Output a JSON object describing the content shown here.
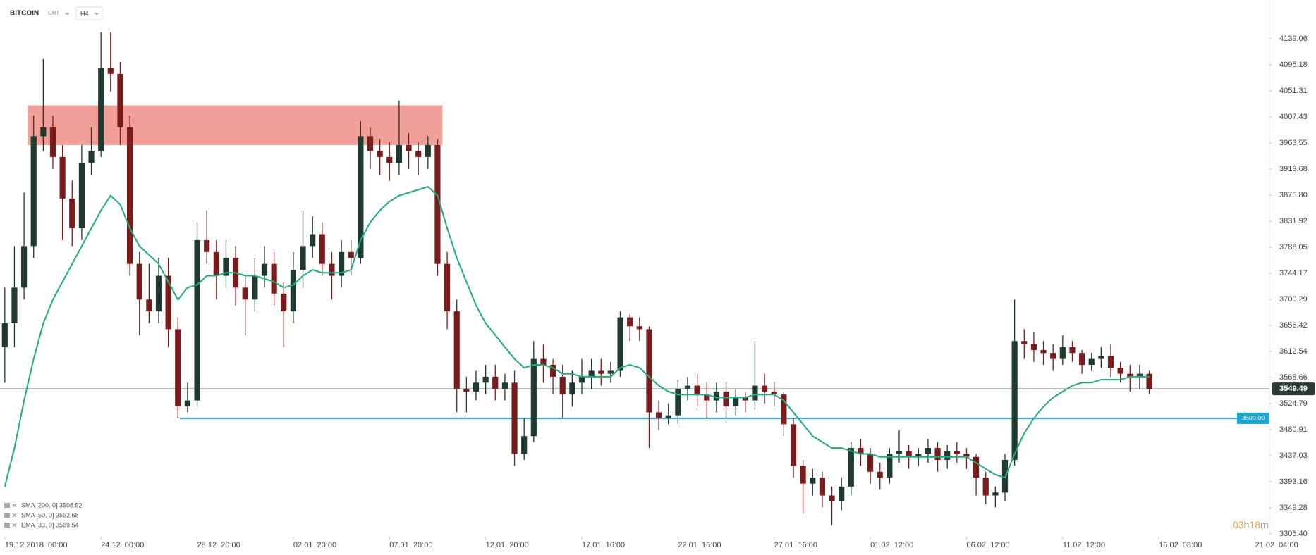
{
  "header": {
    "symbol": "BITCOIN",
    "subtitle": "CRT",
    "timeframe": "H4"
  },
  "chart_data": {
    "type": "candlestick",
    "open": [
      3620,
      3660,
      3720,
      3790,
      3975,
      3990,
      3940,
      3870,
      3820,
      3930,
      3950,
      4090,
      4080,
      3990,
      3760,
      3700,
      3680,
      3740,
      3650,
      3520,
      3530,
      3800,
      3780,
      3740,
      3770,
      3720,
      3700,
      3740,
      3760,
      3710,
      3680,
      3750,
      3790,
      3810,
      3760,
      3740,
      3780,
      3770,
      3975,
      3950,
      3940,
      3930,
      3960,
      3950,
      3940,
      3960,
      3760,
      3680,
      3550,
      3545,
      3560,
      3570,
      3550,
      3560,
      3440,
      3470,
      3600,
      3590,
      3570,
      3540,
      3560,
      3570,
      3580,
      3575,
      3580,
      3670,
      3655,
      3650,
      3510,
      3500,
      3505,
      3550,
      3555,
      3540,
      3530,
      3545,
      3520,
      3535,
      3530,
      3555,
      3545,
      3540,
      3490,
      3420,
      3390,
      3400,
      3370,
      3360,
      3385,
      3450,
      3440,
      3410,
      3400,
      3440,
      3445,
      3435,
      3440,
      3450,
      3430,
      3445,
      3440,
      3435,
      3400,
      3370,
      3375,
      3430,
      3630,
      3625,
      3615,
      3610,
      3600,
      3620,
      3610,
      3590,
      3600,
      3605,
      3585,
      3575,
      3570,
      3575
    ],
    "high": [
      3720,
      3790,
      3880,
      4010,
      4105,
      4010,
      3960,
      3900,
      3960,
      3990,
      4150,
      4150,
      4100,
      4010,
      3780,
      3760,
      3770,
      3770,
      3670,
      3560,
      3830,
      3850,
      3800,
      3800,
      3790,
      3740,
      3770,
      3790,
      3780,
      3730,
      3780,
      3850,
      3840,
      3830,
      3780,
      3800,
      3800,
      4000,
      3990,
      3970,
      3965,
      4035,
      3980,
      3965,
      3975,
      3970,
      3780,
      3700,
      3570,
      3580,
      3590,
      3590,
      3575,
      3580,
      3500,
      3630,
      3625,
      3600,
      3590,
      3580,
      3600,
      3600,
      3600,
      3595,
      3680,
      3675,
      3670,
      3655,
      3530,
      3525,
      3565,
      3570,
      3575,
      3560,
      3560,
      3560,
      3550,
      3545,
      3630,
      3575,
      3560,
      3545,
      3500,
      3430,
      3415,
      3410,
      3385,
      3400,
      3460,
      3465,
      3450,
      3425,
      3450,
      3480,
      3455,
      3450,
      3465,
      3460,
      3455,
      3460,
      3450,
      3440,
      3410,
      3385,
      3440,
      3700,
      3650,
      3645,
      3630,
      3625,
      3640,
      3630,
      3615,
      3610,
      3620,
      3625,
      3595,
      3590,
      3590,
      3580
    ],
    "low": [
      3560,
      3620,
      3700,
      3770,
      3950,
      3920,
      3800,
      3790,
      3800,
      3910,
      3940,
      4050,
      3960,
      3740,
      3640,
      3660,
      3660,
      3620,
      3500,
      3510,
      3520,
      3760,
      3700,
      3720,
      3690,
      3640,
      3680,
      3720,
      3690,
      3620,
      3660,
      3720,
      3770,
      3740,
      3700,
      3720,
      3740,
      3760,
      3920,
      3910,
      3900,
      3910,
      3920,
      3910,
      3920,
      3740,
      3650,
      3510,
      3510,
      3530,
      3540,
      3530,
      3530,
      3420,
      3430,
      3460,
      3560,
      3540,
      3500,
      3520,
      3540,
      3550,
      3555,
      3560,
      3570,
      3630,
      3630,
      3450,
      3480,
      3490,
      3490,
      3530,
      3520,
      3500,
      3510,
      3500,
      3505,
      3510,
      3515,
      3525,
      3520,
      3470,
      3400,
      3340,
      3370,
      3350,
      3320,
      3345,
      3370,
      3420,
      3390,
      3380,
      3390,
      3425,
      3415,
      3420,
      3425,
      3410,
      3415,
      3425,
      3415,
      3370,
      3355,
      3350,
      3360,
      3420,
      3600,
      3595,
      3590,
      3580,
      3590,
      3595,
      3575,
      3580,
      3585,
      3570,
      3560,
      3545,
      3550,
      3540
    ],
    "close": [
      3660,
      3720,
      3790,
      3975,
      3990,
      3940,
      3870,
      3820,
      3930,
      3950,
      4090,
      4080,
      3990,
      3760,
      3700,
      3680,
      3740,
      3650,
      3520,
      3530,
      3800,
      3780,
      3740,
      3770,
      3720,
      3700,
      3740,
      3760,
      3710,
      3680,
      3750,
      3790,
      3810,
      3760,
      3740,
      3780,
      3770,
      3975,
      3950,
      3940,
      3930,
      3960,
      3950,
      3940,
      3960,
      3760,
      3680,
      3550,
      3545,
      3560,
      3570,
      3550,
      3560,
      3440,
      3470,
      3600,
      3590,
      3570,
      3540,
      3560,
      3570,
      3580,
      3575,
      3580,
      3670,
      3655,
      3650,
      3510,
      3500,
      3505,
      3550,
      3555,
      3540,
      3530,
      3545,
      3520,
      3535,
      3530,
      3555,
      3545,
      3540,
      3490,
      3420,
      3390,
      3400,
      3370,
      3360,
      3385,
      3450,
      3440,
      3410,
      3400,
      3440,
      3445,
      3435,
      3440,
      3450,
      3430,
      3445,
      3440,
      3435,
      3400,
      3370,
      3375,
      3430,
      3630,
      3625,
      3615,
      3610,
      3600,
      3620,
      3610,
      3590,
      3600,
      3605,
      3585,
      3575,
      3570,
      3575,
      3549.49
    ],
    "ema": [
      3385,
      3450,
      3530,
      3600,
      3660,
      3700,
      3730,
      3760,
      3790,
      3820,
      3850,
      3875,
      3860,
      3820,
      3790,
      3775,
      3760,
      3730,
      3700,
      3720,
      3725,
      3740,
      3740,
      3745,
      3745,
      3740,
      3740,
      3735,
      3730,
      3720,
      3725,
      3740,
      3750,
      3745,
      3745,
      3745,
      3750,
      3800,
      3830,
      3850,
      3865,
      3875,
      3880,
      3885,
      3890,
      3875,
      3820,
      3770,
      3730,
      3690,
      3660,
      3640,
      3620,
      3600,
      3585,
      3590,
      3590,
      3585,
      3575,
      3575,
      3570,
      3570,
      3570,
      3570,
      3585,
      3590,
      3585,
      3570,
      3555,
      3545,
      3540,
      3540,
      3540,
      3540,
      3535,
      3535,
      3535,
      3535,
      3540,
      3540,
      3540,
      3530,
      3510,
      3490,
      3470,
      3460,
      3450,
      3450,
      3445,
      3440,
      3440,
      3435,
      3435,
      3435,
      3435,
      3435,
      3435,
      3435,
      3435,
      3435,
      3435,
      3425,
      3415,
      3405,
      3400,
      3440,
      3475,
      3500,
      3520,
      3535,
      3545,
      3555,
      3560,
      3560,
      3565,
      3565,
      3565,
      3570,
      3570,
      3570
    ],
    "up_color": "#1f3a2e",
    "down_color": "#7b1c1c",
    "ema_color": "#17b07f",
    "xlim": [
      -0.5,
      131.5
    ],
    "xticks": [
      {
        "value": 0,
        "label": "19.12.2018  00:00"
      },
      {
        "value": 10,
        "label": "24.12  00:00"
      },
      {
        "value": 20,
        "label": "28.12  20:00"
      },
      {
        "value": 30,
        "label": "02.01  20:00"
      },
      {
        "value": 40,
        "label": "07.01  20:00"
      },
      {
        "value": 50,
        "label": "12.01  20:00"
      },
      {
        "value": 60,
        "label": "17.01  16:00"
      },
      {
        "value": 70,
        "label": "22.01  16:00"
      },
      {
        "value": 80,
        "label": "27.01  16:00"
      },
      {
        "value": 90,
        "label": "01.02  12:00"
      },
      {
        "value": 100,
        "label": "06.02  12:00"
      },
      {
        "value": 110,
        "label": "11.02  12:00"
      },
      {
        "value": 120,
        "label": "16.02  08:00"
      },
      {
        "value": 130,
        "label": "21.02  04:00"
      }
    ],
    "ylim": [
      3290,
      4180
    ],
    "yticks": [
      {
        "value": 3305.4,
        "label": "3305.40"
      },
      3349.28,
      3393.16,
      3437.03,
      3480.91,
      3524.79,
      3568.66,
      3612.54,
      3656.42,
      3700.29,
      3744.17,
      3788.05,
      3831.92,
      {
        "value": 3875.8,
        "label": "3875.80"
      },
      3919.68,
      3963.55,
      4007.43,
      4051.31,
      4095.18,
      4139.06
    ],
    "zone": {
      "low": 3960,
      "high": 4027,
      "x": [
        2.4,
        45.5
      ],
      "color": "#f09a94"
    },
    "level": {
      "value": 3500,
      "label": "3500.00",
      "x_start": 18.2,
      "color": "#1ba6d6"
    },
    "last_price": {
      "value": 3549.49,
      "label": "3549.49"
    },
    "indicators": [
      "SMA [200, 0] 3508.52",
      "SMA [50, 0] 3562.68",
      "EMA [33, 0] 3569.54"
    ],
    "timer": [
      "03",
      "h",
      "18",
      "m"
    ]
  }
}
